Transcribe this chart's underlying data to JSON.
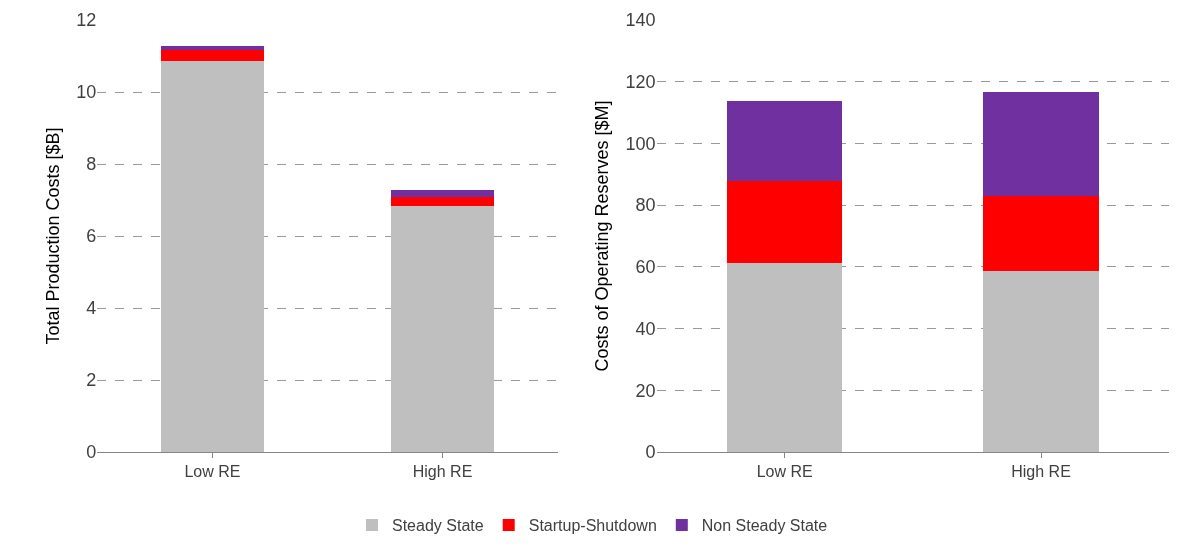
{
  "chart_data": [
    {
      "type": "bar",
      "stacked": true,
      "ylabel": "Total Production Costs [$B]",
      "categories": [
        "Low RE",
        "High RE"
      ],
      "ylim": [
        0,
        12
      ],
      "yticks": [
        0,
        2,
        4,
        6,
        8,
        10,
        12
      ],
      "grid": "y",
      "legend": "bottom",
      "series": [
        {
          "name": "Steady State",
          "color": "#bfbfbf",
          "values": [
            10.87,
            6.83
          ]
        },
        {
          "name": "Startup-Shutdown",
          "color": "#ff0000",
          "values": [
            0.3,
            0.25
          ]
        },
        {
          "name": "Non Steady State",
          "color": "#7030a0",
          "values": [
            0.1,
            0.19
          ]
        }
      ]
    },
    {
      "type": "bar",
      "stacked": true,
      "ylabel": "Costs of Operating Reserves [$M]",
      "categories": [
        "Low RE",
        "High RE"
      ],
      "ylim": [
        0,
        140
      ],
      "yticks": [
        0,
        20,
        40,
        60,
        80,
        100,
        120,
        140
      ],
      "grid": "y",
      "legend": "bottom",
      "series": [
        {
          "name": "Steady State",
          "color": "#bfbfbf",
          "values": [
            61.1,
            58.6
          ]
        },
        {
          "name": "Startup-Shutdown",
          "color": "#ff0000",
          "values": [
            26.6,
            24.5
          ]
        },
        {
          "name": "Non Steady State",
          "color": "#7030a0",
          "values": [
            26.0,
            33.7
          ]
        }
      ]
    }
  ]
}
